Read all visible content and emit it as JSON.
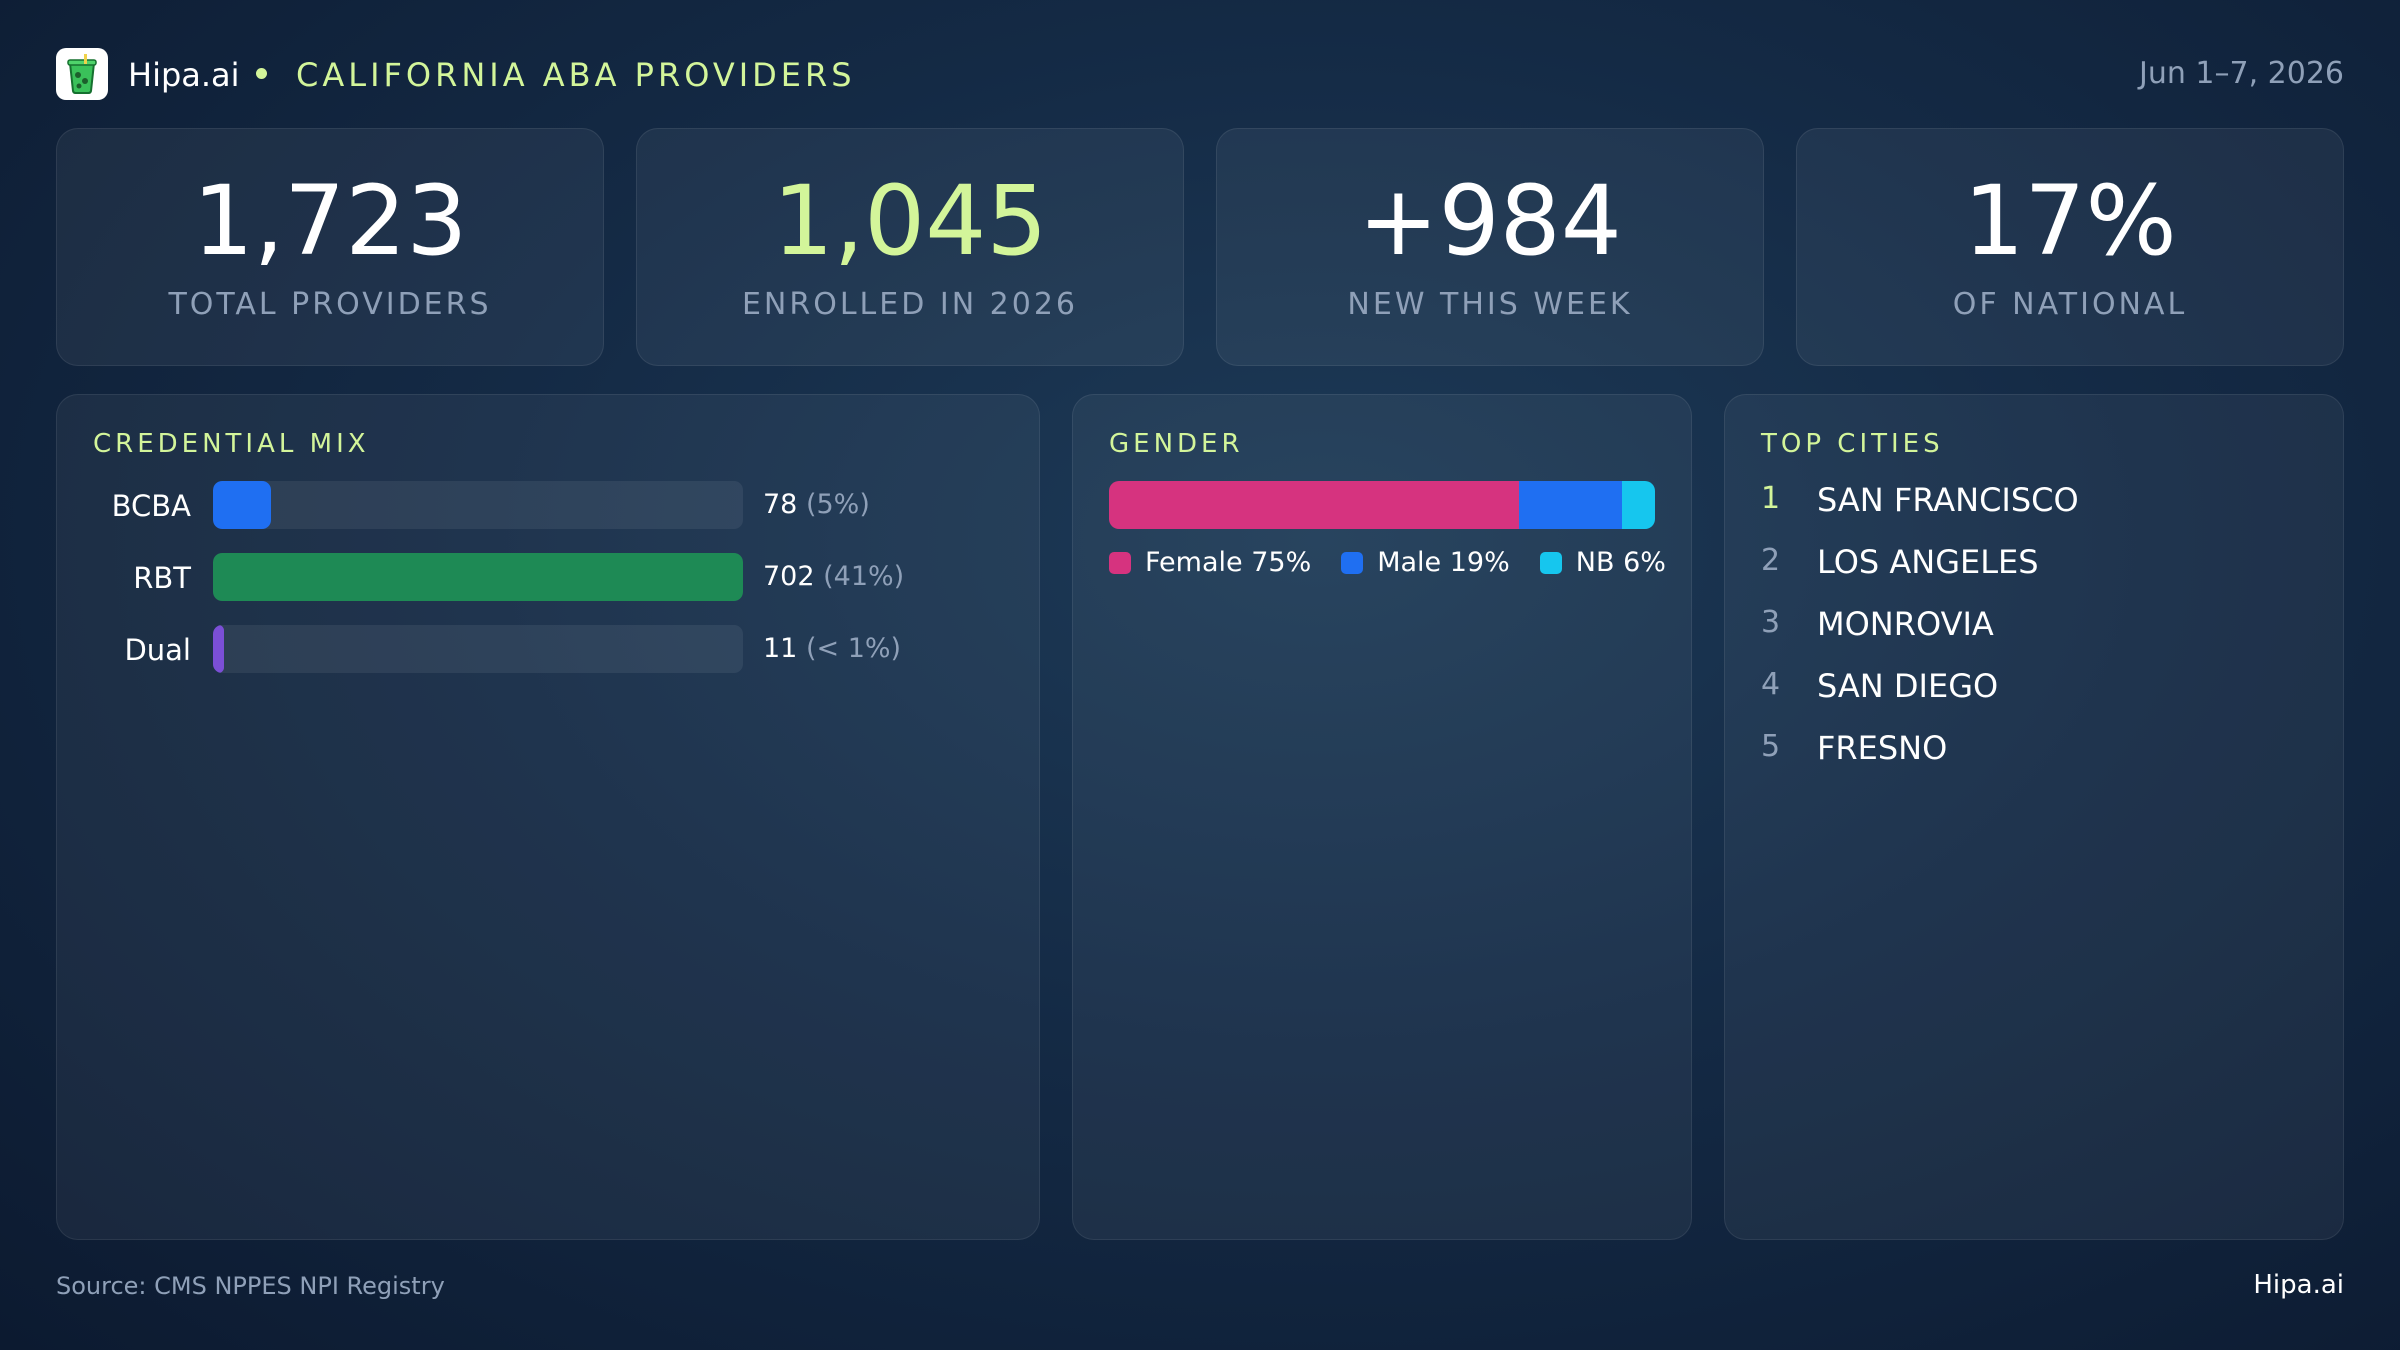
{
  "header": {
    "brand": "Hipa.ai",
    "title": "CALIFORNIA ABA PROVIDERS",
    "date_range": "Jun 1–7, 2026",
    "logo_icon": "green-cup-icon"
  },
  "kpis": [
    {
      "value": "1,723",
      "label": "TOTAL PROVIDERS",
      "accent": false
    },
    {
      "value": "1,045",
      "label": "ENROLLED IN 2026",
      "accent": true
    },
    {
      "value": "+984",
      "label": "NEW THIS WEEK",
      "accent": false
    },
    {
      "value": "17%",
      "label": "OF NATIONAL",
      "accent": false
    }
  ],
  "credential_mix": {
    "title": "CREDENTIAL MIX",
    "rows": [
      {
        "label": "BCBA",
        "count": "78",
        "pct_text": "(5%)",
        "fraction": 0.11,
        "color": "#1f6ff2"
      },
      {
        "label": "RBT",
        "count": "702",
        "pct_text": "(41%)",
        "fraction": 1.0,
        "color": "#1e8a55"
      },
      {
        "label": "Dual",
        "count": "11",
        "pct_text": "(< 1%)",
        "fraction": 0.02,
        "color": "#7b4fd6"
      }
    ]
  },
  "gender": {
    "title": "GENDER",
    "segments": [
      {
        "label": "Female 75%",
        "share": 75,
        "color": "#d6337f"
      },
      {
        "label": "Male 19%",
        "share": 19,
        "color": "#1f6ff2"
      },
      {
        "label": "NB 6%",
        "share": 6,
        "color": "#16c6ee"
      }
    ]
  },
  "top_cities": {
    "title": "TOP CITIES",
    "items": [
      {
        "rank": "1",
        "name": "SAN FRANCISCO"
      },
      {
        "rank": "2",
        "name": "LOS ANGELES"
      },
      {
        "rank": "3",
        "name": "MONROVIA"
      },
      {
        "rank": "4",
        "name": "SAN DIEGO"
      },
      {
        "rank": "5",
        "name": "FRESNO"
      }
    ]
  },
  "footer": {
    "source": "Source: CMS NPPES NPI Registry",
    "brand": "Hipa.ai"
  },
  "colors": {
    "accent": "#d3f59a",
    "muted": "#8fa0b8"
  }
}
